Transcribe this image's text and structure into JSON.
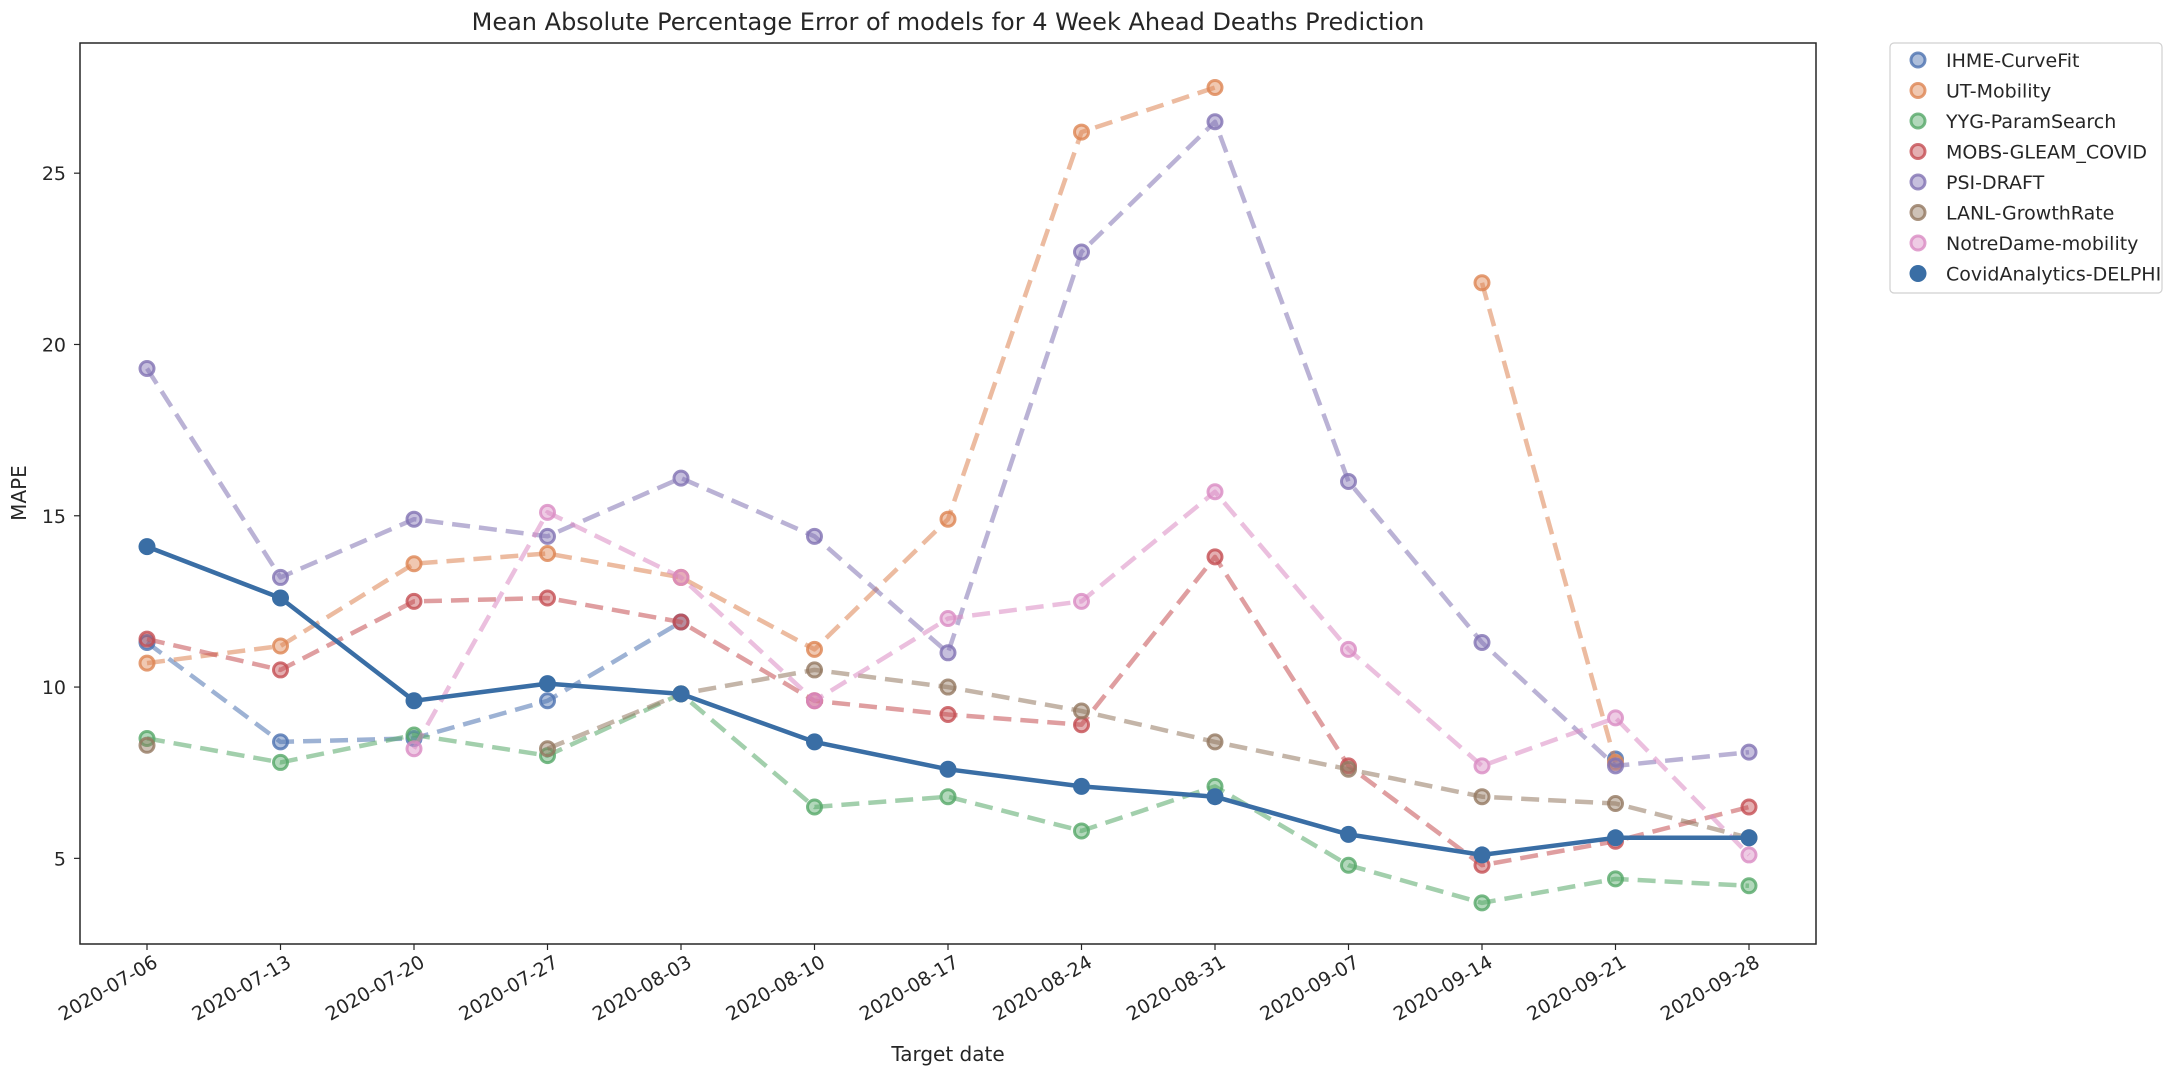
{
  "chart_data": {
    "type": "line",
    "title": "Mean Absolute Percentage Error of models for 4 Week Ahead Deaths Prediction",
    "xlabel": "Target date",
    "ylabel": "MAPE",
    "categories": [
      "2020-07-06",
      "2020-07-13",
      "2020-07-20",
      "2020-07-27",
      "2020-08-03",
      "2020-08-10",
      "2020-08-17",
      "2020-08-24",
      "2020-08-31",
      "2020-09-07",
      "2020-09-14",
      "2020-09-21",
      "2020-09-28"
    ],
    "yticks": [
      5,
      10,
      15,
      20,
      25
    ],
    "ylim": [
      2.5,
      28.8
    ],
    "grid": false,
    "legend_position": "outside-top-right",
    "series": [
      {
        "name": "IHME-CurveFit",
        "color": "#4c72b0",
        "style": "dashed",
        "values": [
          11.3,
          8.4,
          8.5,
          9.6,
          11.9,
          null,
          null,
          null,
          null,
          null,
          null,
          7.9,
          null
        ]
      },
      {
        "name": "UT-Mobility",
        "color": "#dd8452",
        "style": "dashed",
        "values": [
          10.7,
          11.2,
          13.6,
          13.9,
          13.2,
          11.1,
          14.9,
          26.2,
          27.5,
          null,
          21.8,
          7.8,
          null
        ]
      },
      {
        "name": "YYG-ParamSearch",
        "color": "#55a868",
        "style": "dashed",
        "values": [
          8.5,
          7.8,
          8.6,
          8.0,
          9.8,
          6.5,
          6.8,
          5.8,
          7.1,
          4.8,
          3.7,
          4.4,
          4.2
        ]
      },
      {
        "name": "MOBS-GLEAM_COVID",
        "color": "#c44e52",
        "style": "dashed",
        "values": [
          11.4,
          10.5,
          12.5,
          12.6,
          11.9,
          9.6,
          9.2,
          8.9,
          13.8,
          7.7,
          4.8,
          5.5,
          6.5
        ]
      },
      {
        "name": "PSI-DRAFT",
        "color": "#8172b3",
        "style": "dashed",
        "values": [
          19.3,
          13.2,
          14.9,
          14.4,
          16.1,
          14.4,
          11.0,
          22.7,
          26.5,
          16.0,
          11.3,
          7.7,
          8.1
        ]
      },
      {
        "name": "LANL-GrowthRate",
        "color": "#937860",
        "style": "dashed",
        "values": [
          8.3,
          null,
          null,
          8.2,
          9.8,
          10.5,
          10.0,
          9.3,
          8.4,
          7.6,
          6.8,
          6.6,
          5.6
        ]
      },
      {
        "name": "NotreDame-mobility",
        "color": "#da8bc3",
        "style": "dashed",
        "values": [
          null,
          null,
          8.2,
          15.1,
          13.2,
          9.6,
          12.0,
          12.5,
          15.7,
          11.1,
          7.7,
          9.1,
          5.1
        ]
      },
      {
        "name": "CovidAnalytics-DELPHI",
        "color": "#3a6ea5",
        "style": "solid",
        "values": [
          14.1,
          12.6,
          9.6,
          10.1,
          9.8,
          8.4,
          7.6,
          7.1,
          6.8,
          5.7,
          5.1,
          5.6,
          5.6
        ]
      }
    ]
  }
}
